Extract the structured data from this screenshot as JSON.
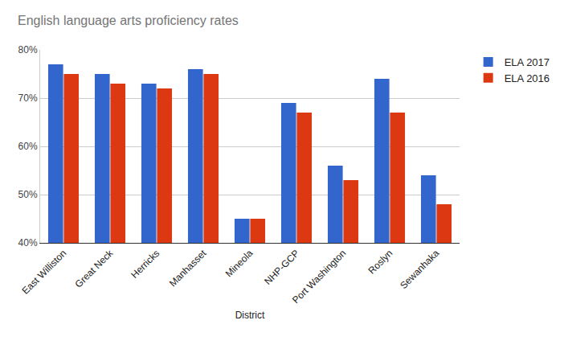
{
  "chart_data": {
    "type": "bar",
    "title": "English language arts proficiency rates",
    "x_label": "District",
    "categories": [
      "East Williston",
      "Great Neck",
      "Herricks",
      "Manhasset",
      "Mineola",
      "NHP-GCP",
      "Port Washington",
      "Roslyn",
      "Sewanhaka"
    ],
    "series": [
      {
        "name": "ELA 2017",
        "color": "#3366cc",
        "values": [
          77,
          75,
          73,
          76,
          45,
          69,
          56,
          74,
          54
        ]
      },
      {
        "name": "ELA 2016",
        "color": "#dc3912",
        "values": [
          75,
          73,
          72,
          75,
          45,
          67,
          53,
          67,
          48
        ]
      }
    ],
    "ylim": [
      40,
      80
    ],
    "yticks": [
      {
        "value": 40,
        "label": "40%"
      },
      {
        "value": 50,
        "label": "50%"
      },
      {
        "value": 60,
        "label": "60%"
      },
      {
        "value": 70,
        "label": "70%"
      },
      {
        "value": 80,
        "label": "80%"
      }
    ],
    "grid": true,
    "legend": "right"
  }
}
